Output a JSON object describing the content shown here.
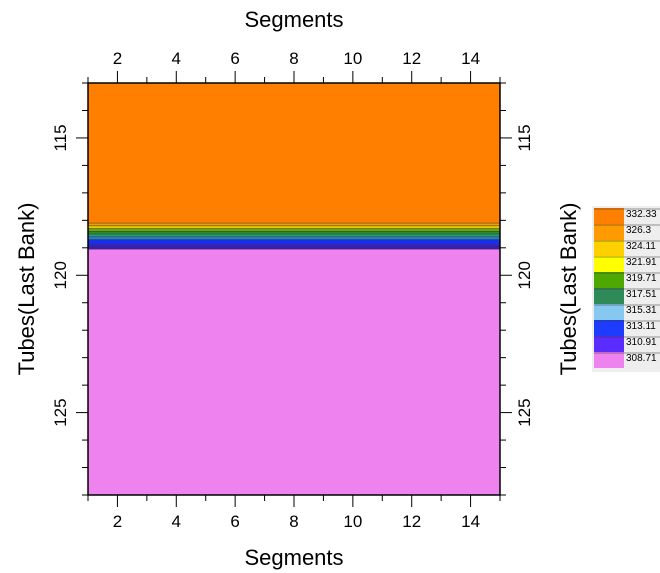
{
  "chart_data": {
    "type": "heatmap",
    "title": "",
    "xlabel_top": "Segments",
    "xlabel_bottom": "Segments",
    "ylabel_left": "Tubes(Last Bank)",
    "ylabel_right": "Tubes(Last Bank)",
    "xlim": [
      1,
      15
    ],
    "ylim": [
      128,
      113
    ],
    "x_ticks": [
      2,
      4,
      6,
      8,
      10,
      12,
      14
    ],
    "y_ticks": [
      115,
      120,
      125
    ],
    "grid": false,
    "legend_placement": "right",
    "bands": [
      {
        "from": 113,
        "to": 118.1,
        "value": 332.33,
        "color": "#ff7f00"
      },
      {
        "from": 118.1,
        "to": 118.2,
        "value": 326.3,
        "color": "#f0a000"
      },
      {
        "from": 118.2,
        "to": 118.3,
        "value": 324.11,
        "color": "#e6c800"
      },
      {
        "from": 118.3,
        "to": 118.4,
        "value": 321.91,
        "color": "#6aa800"
      },
      {
        "from": 118.4,
        "to": 118.5,
        "value": 319.71,
        "color": "#2e8b2e"
      },
      {
        "from": 118.5,
        "to": 118.6,
        "value": 317.51,
        "color": "#20a070"
      },
      {
        "from": 118.6,
        "to": 118.7,
        "value": 315.31,
        "color": "#1f7fd0"
      },
      {
        "from": 118.7,
        "to": 118.9,
        "value": 313.11,
        "color": "#1a2ee6"
      },
      {
        "from": 118.9,
        "to": 119.05,
        "value": 310.91,
        "color": "#3a1ab8"
      },
      {
        "from": 119.05,
        "to": 128,
        "value": 308.71,
        "color": "#ee82ee"
      }
    ],
    "legend": [
      {
        "label": "332.33",
        "color": "#ff7f00"
      },
      {
        "label": "326.3",
        "color": "#ff9a00"
      },
      {
        "label": "324.11",
        "color": "#ffd000"
      },
      {
        "label": "321.91",
        "color": "#ffff00"
      },
      {
        "label": "319.71",
        "color": "#4ea800"
      },
      {
        "label": "317.51",
        "color": "#2e8b57"
      },
      {
        "label": "315.31",
        "color": "#86c8f0"
      },
      {
        "label": "313.11",
        "color": "#1e3cff"
      },
      {
        "label": "310.91",
        "color": "#5a2cff"
      },
      {
        "label": "308.71",
        "color": "#ee82ee"
      }
    ]
  }
}
